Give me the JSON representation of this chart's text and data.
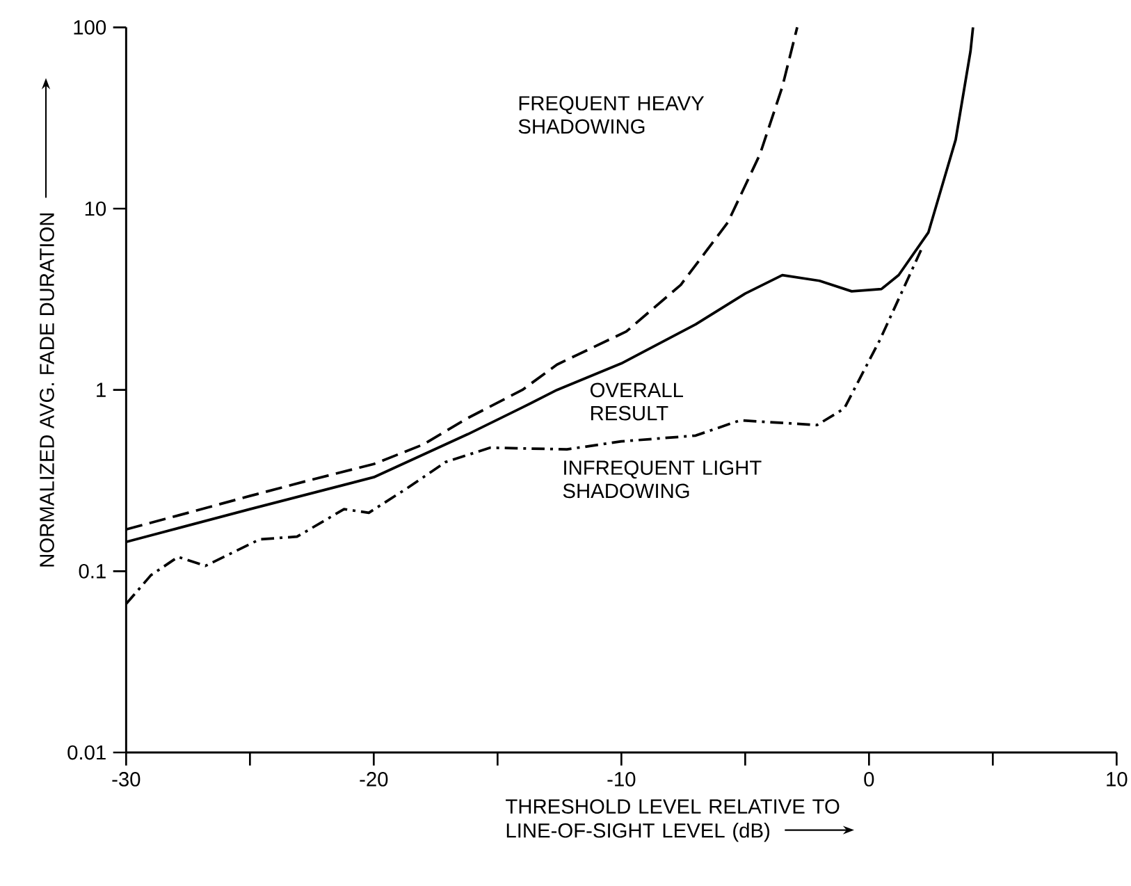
{
  "chart_data": {
    "type": "line",
    "xlabel": "THRESHOLD LEVEL RELATIVE TO LINE-OF-SIGHT LEVEL (dB)",
    "ylabel": "NORMALIZED AVG. FADE DURATION",
    "log": "y",
    "xlim": [
      -30,
      10
    ],
    "ylim": [
      0.01,
      100
    ],
    "xticks": [
      -30,
      {
        "value": -25,
        "label": null
      },
      -20,
      {
        "value": -15,
        "label": null
      },
      -10,
      {
        "value": -5,
        "label": null
      },
      0,
      {
        "value": 5,
        "label": null
      },
      10
    ],
    "yticks": [
      0.01,
      0.1,
      1,
      10,
      100
    ],
    "grid": false,
    "legend": false,
    "marker": "none",
    "series": [
      {
        "name": "FREQUENT HEAVY SHADOWING",
        "color": "#000000",
        "line_style": "dashed",
        "x": [
          -30,
          -27.5,
          -25,
          -22.5,
          -20,
          -18,
          -16.2,
          -14,
          -12.6,
          -9.8,
          -7.6,
          -5.7,
          -4.4,
          -3.5,
          -2.9
        ],
        "values": [
          0.17,
          0.21,
          0.26,
          0.32,
          0.39,
          0.5,
          0.7,
          1.0,
          1.38,
          2.1,
          3.8,
          8.4,
          20,
          47,
          100
        ]
      },
      {
        "name": "OVERALL RESULT",
        "color": "#000000",
        "line_style": "solid",
        "x": [
          -30,
          -25,
          -20,
          -16.2,
          -14,
          -12.6,
          -10,
          -7,
          -5,
          -3.5,
          -2,
          -0.7,
          0.5,
          1.2,
          2.4,
          3.5,
          4.1,
          4.2
        ],
        "values": [
          0.145,
          0.22,
          0.33,
          0.57,
          0.8,
          1.0,
          1.4,
          2.3,
          3.4,
          4.3,
          4.0,
          3.5,
          3.6,
          4.3,
          7.4,
          24,
          74,
          100
        ]
      },
      {
        "name": "INFREQUENT LIGHT SHADOWING",
        "color": "#000000",
        "line_style": "dashdot",
        "x": [
          -30,
          -29,
          -27.9,
          -26.8,
          -24.6,
          -23.1,
          -21.2,
          -20.2,
          -18.6,
          -17.1,
          -15.3,
          -12.2,
          -10,
          -7,
          -5.2,
          -2.1,
          -1,
          0.45,
          2.1
        ],
        "values": [
          0.066,
          0.095,
          0.12,
          0.107,
          0.15,
          0.155,
          0.22,
          0.21,
          0.29,
          0.4,
          0.48,
          0.47,
          0.52,
          0.56,
          0.68,
          0.64,
          0.79,
          1.9,
          5.9
        ]
      }
    ]
  }
}
